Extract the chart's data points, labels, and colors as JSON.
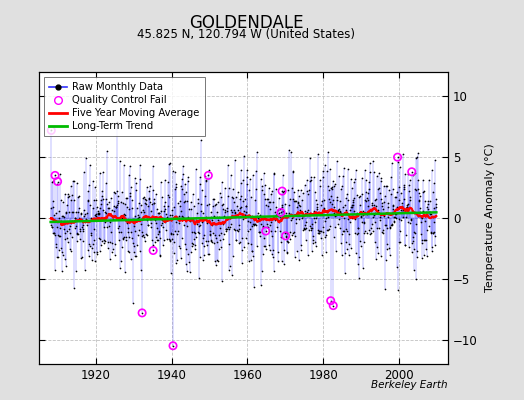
{
  "title": "GOLDENDALE",
  "subtitle": "45.825 N, 120.794 W (United States)",
  "ylabel": "Temperature Anomaly (°C)",
  "credit": "Berkeley Earth",
  "xlim": [
    1905,
    2013
  ],
  "ylim": [
    -12,
    12
  ],
  "yticks": [
    -10,
    -5,
    0,
    5,
    10
  ],
  "xticks": [
    1920,
    1940,
    1960,
    1980,
    2000
  ],
  "bg_color": "#e0e0e0",
  "plot_bg": "#ffffff",
  "raw_color": "#3333ff",
  "raw_dot_color": "#000000",
  "ma_color": "#ff0000",
  "trend_color": "#00bb00",
  "qc_color": "#ff00ff",
  "grid_color": "#bbbbbb",
  "seed": 42,
  "n_years": 102,
  "start_year": 1908
}
